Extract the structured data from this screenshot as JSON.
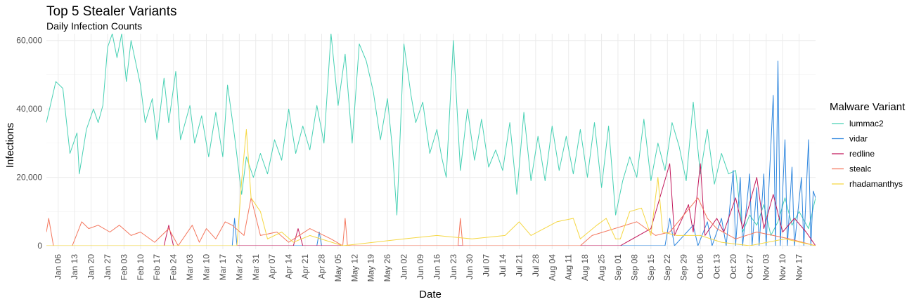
{
  "chart_data": {
    "type": "line",
    "title": "Top 5 Stealer Variants",
    "subtitle": "Daily Infection Counts",
    "xlabel": "Date",
    "ylabel": "Infections",
    "x_start": "2024-01-01",
    "x_end": "2024-11-23",
    "ylim": [
      0,
      62000
    ],
    "y_ticks": [
      0,
      20000,
      40000,
      60000
    ],
    "y_tick_labels": [
      "0",
      "20,000",
      "40,000",
      "60,000"
    ],
    "x_tick_labels": [
      "Jan 06",
      "Jan 13",
      "Jan 20",
      "Jan 27",
      "Feb 03",
      "Feb 10",
      "Feb 17",
      "Feb 24",
      "Mar 03",
      "Mar 10",
      "Mar 17",
      "Mar 24",
      "Mar 31",
      "Apr 07",
      "Apr 14",
      "Apr 21",
      "Apr 28",
      "May 05",
      "May 12",
      "May 19",
      "May 26",
      "Jun 02",
      "Jun 09",
      "Jun 16",
      "Jun 23",
      "Jun 30",
      "Jul 07",
      "Jul 14",
      "Jul 21",
      "Jul 28",
      "Aug 04",
      "Aug 11",
      "Aug 18",
      "Aug 25",
      "Sep 01",
      "Sep 08",
      "Sep 15",
      "Sep 22",
      "Sep 29",
      "Oct 06",
      "Oct 13",
      "Oct 20",
      "Oct 27",
      "Nov 03",
      "Nov 10",
      "Nov 17"
    ],
    "grid": true,
    "legend": {
      "title": "Malware Variant",
      "position": "right"
    },
    "series": [
      {
        "name": "lummac2",
        "color": "#48d1b4",
        "points": [
          [
            "2024-01-01",
            36000
          ],
          [
            "2024-01-05",
            48000
          ],
          [
            "2024-01-08",
            46000
          ],
          [
            "2024-01-11",
            27000
          ],
          [
            "2024-01-14",
            33000
          ],
          [
            "2024-01-15",
            21000
          ],
          [
            "2024-01-18",
            34000
          ],
          [
            "2024-01-21",
            40000
          ],
          [
            "2024-01-23",
            36000
          ],
          [
            "2024-01-25",
            41000
          ],
          [
            "2024-01-27",
            58000
          ],
          [
            "2024-01-29",
            62000
          ],
          [
            "2024-01-31",
            55000
          ],
          [
            "2024-02-02",
            62000
          ],
          [
            "2024-02-04",
            48000
          ],
          [
            "2024-02-06",
            60000
          ],
          [
            "2024-02-10",
            47000
          ],
          [
            "2024-02-12",
            36000
          ],
          [
            "2024-02-15",
            43000
          ],
          [
            "2024-02-17",
            31000
          ],
          [
            "2024-02-20",
            49000
          ],
          [
            "2024-02-22",
            36000
          ],
          [
            "2024-02-25",
            51000
          ],
          [
            "2024-02-27",
            31000
          ],
          [
            "2024-03-02",
            41000
          ],
          [
            "2024-03-04",
            30000
          ],
          [
            "2024-03-07",
            38000
          ],
          [
            "2024-03-10",
            26000
          ],
          [
            "2024-03-13",
            39000
          ],
          [
            "2024-03-16",
            26000
          ],
          [
            "2024-03-18",
            47000
          ],
          [
            "2024-03-21",
            32000
          ],
          [
            "2024-03-24",
            15000
          ],
          [
            "2024-03-26",
            26000
          ],
          [
            "2024-03-29",
            20000
          ],
          [
            "2024-04-01",
            27000
          ],
          [
            "2024-04-04",
            21000
          ],
          [
            "2024-04-07",
            31000
          ],
          [
            "2024-04-10",
            25000
          ],
          [
            "2024-04-13",
            40000
          ],
          [
            "2024-04-16",
            27000
          ],
          [
            "2024-04-19",
            35000
          ],
          [
            "2024-04-22",
            28000
          ],
          [
            "2024-04-25",
            41000
          ],
          [
            "2024-04-28",
            30000
          ],
          [
            "2024-05-01",
            62000
          ],
          [
            "2024-05-04",
            41000
          ],
          [
            "2024-05-07",
            56000
          ],
          [
            "2024-05-10",
            30000
          ],
          [
            "2024-05-13",
            59000
          ],
          [
            "2024-05-16",
            54000
          ],
          [
            "2024-05-19",
            45000
          ],
          [
            "2024-05-22",
            31000
          ],
          [
            "2024-05-25",
            43000
          ],
          [
            "2024-05-27",
            29000
          ],
          [
            "2024-05-29",
            9000
          ],
          [
            "2024-06-01",
            59000
          ],
          [
            "2024-06-04",
            44000
          ],
          [
            "2024-06-06",
            36000
          ],
          [
            "2024-06-09",
            42000
          ],
          [
            "2024-06-12",
            27000
          ],
          [
            "2024-06-15",
            34000
          ],
          [
            "2024-06-17",
            26000
          ],
          [
            "2024-06-19",
            20000
          ],
          [
            "2024-06-22",
            60000
          ],
          [
            "2024-06-25",
            22000
          ],
          [
            "2024-06-28",
            40000
          ],
          [
            "2024-07-01",
            25000
          ],
          [
            "2024-07-04",
            37000
          ],
          [
            "2024-07-07",
            23000
          ],
          [
            "2024-07-10",
            28000
          ],
          [
            "2024-07-13",
            22000
          ],
          [
            "2024-07-16",
            36000
          ],
          [
            "2024-07-19",
            15000
          ],
          [
            "2024-07-22",
            39000
          ],
          [
            "2024-07-25",
            19000
          ],
          [
            "2024-07-28",
            32000
          ],
          [
            "2024-07-31",
            19000
          ],
          [
            "2024-08-03",
            35000
          ],
          [
            "2024-08-06",
            22000
          ],
          [
            "2024-08-09",
            32000
          ],
          [
            "2024-08-12",
            21000
          ],
          [
            "2024-08-15",
            34000
          ],
          [
            "2024-08-18",
            20000
          ],
          [
            "2024-08-21",
            36000
          ],
          [
            "2024-08-24",
            17000
          ],
          [
            "2024-08-27",
            35000
          ],
          [
            "2024-08-30",
            9000
          ],
          [
            "2024-09-02",
            19000
          ],
          [
            "2024-09-05",
            26000
          ],
          [
            "2024-09-08",
            20000
          ],
          [
            "2024-09-11",
            37000
          ],
          [
            "2024-09-14",
            19000
          ],
          [
            "2024-09-17",
            30000
          ],
          [
            "2024-09-20",
            22000
          ],
          [
            "2024-09-23",
            36000
          ],
          [
            "2024-09-26",
            29000
          ],
          [
            "2024-09-29",
            19000
          ],
          [
            "2024-10-02",
            42000
          ],
          [
            "2024-10-05",
            21000
          ],
          [
            "2024-10-08",
            34000
          ],
          [
            "2024-10-11",
            18000
          ],
          [
            "2024-10-14",
            27000
          ],
          [
            "2024-10-17",
            21000
          ],
          [
            "2024-10-20",
            22000
          ],
          [
            "2024-10-23",
            4000
          ],
          [
            "2024-10-26",
            9000
          ],
          [
            "2024-10-29",
            6000
          ],
          [
            "2024-11-01",
            12000
          ],
          [
            "2024-11-04",
            3000
          ],
          [
            "2024-11-07",
            7000
          ],
          [
            "2024-11-10",
            14000
          ],
          [
            "2024-11-13",
            6000
          ],
          [
            "2024-11-16",
            10000
          ],
          [
            "2024-11-20",
            5000
          ],
          [
            "2024-11-23",
            14000
          ]
        ]
      },
      {
        "name": "vidar",
        "color": "#2e86de",
        "points": [
          [
            "2024-01-01",
            0
          ],
          [
            "2024-03-20",
            0
          ],
          [
            "2024-03-21",
            8000
          ],
          [
            "2024-03-22",
            0
          ],
          [
            "2024-04-25",
            0
          ],
          [
            "2024-04-26",
            4000
          ],
          [
            "2024-04-27",
            0
          ],
          [
            "2024-08-20",
            0
          ],
          [
            "2024-09-20",
            0
          ],
          [
            "2024-09-22",
            8000
          ],
          [
            "2024-09-24",
            0
          ],
          [
            "2024-10-02",
            6000
          ],
          [
            "2024-10-04",
            0
          ],
          [
            "2024-10-08",
            7000
          ],
          [
            "2024-10-10",
            0
          ],
          [
            "2024-10-14",
            8000
          ],
          [
            "2024-10-16",
            0
          ],
          [
            "2024-10-19",
            22000
          ],
          [
            "2024-10-20",
            0
          ],
          [
            "2024-10-22",
            20000
          ],
          [
            "2024-10-23",
            0
          ],
          [
            "2024-10-26",
            21000
          ],
          [
            "2024-10-27",
            0
          ],
          [
            "2024-10-29",
            17000
          ],
          [
            "2024-10-30",
            0
          ],
          [
            "2024-11-01",
            21000
          ],
          [
            "2024-11-02",
            0
          ],
          [
            "2024-11-05",
            44000
          ],
          [
            "2024-11-06",
            0
          ],
          [
            "2024-11-07",
            54000
          ],
          [
            "2024-11-08",
            0
          ],
          [
            "2024-11-10",
            31000
          ],
          [
            "2024-11-11",
            0
          ],
          [
            "2024-11-13",
            23000
          ],
          [
            "2024-11-14",
            0
          ],
          [
            "2024-11-17",
            20000
          ],
          [
            "2024-11-18",
            0
          ],
          [
            "2024-11-20",
            31000
          ],
          [
            "2024-11-21",
            0
          ],
          [
            "2024-11-22",
            16000
          ],
          [
            "2024-11-23",
            14000
          ]
        ]
      },
      {
        "name": "redline",
        "color": "#c2185b",
        "points": [
          [
            "2024-01-01",
            0
          ],
          [
            "2024-02-20",
            0
          ],
          [
            "2024-02-22",
            6000
          ],
          [
            "2024-02-24",
            0
          ],
          [
            "2024-04-15",
            0
          ],
          [
            "2024-04-17",
            5000
          ],
          [
            "2024-04-19",
            0
          ],
          [
            "2024-09-01",
            0
          ],
          [
            "2024-09-14",
            5000
          ],
          [
            "2024-09-22",
            24000
          ],
          [
            "2024-09-24",
            3000
          ],
          [
            "2024-09-30",
            12000
          ],
          [
            "2024-10-02",
            4000
          ],
          [
            "2024-10-05",
            24000
          ],
          [
            "2024-10-07",
            3000
          ],
          [
            "2024-10-12",
            8000
          ],
          [
            "2024-10-15",
            4000
          ],
          [
            "2024-10-20",
            14000
          ],
          [
            "2024-10-23",
            5000
          ],
          [
            "2024-10-29",
            20000
          ],
          [
            "2024-11-01",
            5000
          ],
          [
            "2024-11-05",
            15000
          ],
          [
            "2024-11-09",
            4000
          ],
          [
            "2024-11-14",
            8000
          ],
          [
            "2024-11-19",
            4000
          ],
          [
            "2024-11-23",
            0
          ]
        ]
      },
      {
        "name": "stealc",
        "color": "#f4775e",
        "points": [
          [
            "2024-01-01",
            4000
          ],
          [
            "2024-01-02",
            8000
          ],
          [
            "2024-01-04",
            0
          ],
          [
            "2024-01-12",
            0
          ],
          [
            "2024-01-16",
            7000
          ],
          [
            "2024-01-19",
            5000
          ],
          [
            "2024-01-23",
            6000
          ],
          [
            "2024-01-28",
            4000
          ],
          [
            "2024-02-01",
            6000
          ],
          [
            "2024-02-06",
            3000
          ],
          [
            "2024-02-10",
            4000
          ],
          [
            "2024-02-16",
            1000
          ],
          [
            "2024-02-22",
            5000
          ],
          [
            "2024-02-26",
            0
          ],
          [
            "2024-03-03",
            6000
          ],
          [
            "2024-03-06",
            1000
          ],
          [
            "2024-03-09",
            5000
          ],
          [
            "2024-03-13",
            2000
          ],
          [
            "2024-03-17",
            7000
          ],
          [
            "2024-03-20",
            6000
          ],
          [
            "2024-03-25",
            3000
          ],
          [
            "2024-03-28",
            14000
          ],
          [
            "2024-04-01",
            3000
          ],
          [
            "2024-04-08",
            4000
          ],
          [
            "2024-04-13",
            1000
          ],
          [
            "2024-04-22",
            5000
          ],
          [
            "2024-05-01",
            2000
          ],
          [
            "2024-05-06",
            0
          ],
          [
            "2024-05-07",
            8000
          ],
          [
            "2024-05-08",
            0
          ],
          [
            "2024-06-24",
            0
          ],
          [
            "2024-06-25",
            8000
          ],
          [
            "2024-06-26",
            0
          ],
          [
            "2024-08-15",
            0
          ],
          [
            "2024-08-20",
            3000
          ],
          [
            "2024-09-08",
            7000
          ],
          [
            "2024-09-16",
            3000
          ],
          [
            "2024-09-22",
            4000
          ],
          [
            "2024-10-04",
            14000
          ],
          [
            "2024-10-08",
            8000
          ],
          [
            "2024-10-12",
            5000
          ],
          [
            "2024-10-20",
            2000
          ],
          [
            "2024-10-29",
            4000
          ],
          [
            "2024-11-05",
            3000
          ],
          [
            "2024-11-12",
            2000
          ],
          [
            "2024-11-23",
            0
          ]
        ]
      },
      {
        "name": "rhadamanthys",
        "color": "#f5d742",
        "points": [
          [
            "2024-01-01",
            0
          ],
          [
            "2024-03-22",
            0
          ],
          [
            "2024-03-24",
            19000
          ],
          [
            "2024-03-26",
            34000
          ],
          [
            "2024-03-28",
            14000
          ],
          [
            "2024-04-01",
            10000
          ],
          [
            "2024-04-04",
            2000
          ],
          [
            "2024-04-10",
            4000
          ],
          [
            "2024-04-15",
            1000
          ],
          [
            "2024-04-22",
            3000
          ],
          [
            "2024-05-06",
            0
          ],
          [
            "2024-06-01",
            2000
          ],
          [
            "2024-06-15",
            3000
          ],
          [
            "2024-06-30",
            2000
          ],
          [
            "2024-07-14",
            3000
          ],
          [
            "2024-07-20",
            7000
          ],
          [
            "2024-07-25",
            3000
          ],
          [
            "2024-08-05",
            7000
          ],
          [
            "2024-08-12",
            8000
          ],
          [
            "2024-08-15",
            2000
          ],
          [
            "2024-08-22",
            6000
          ],
          [
            "2024-08-26",
            8000
          ],
          [
            "2024-08-30",
            2000
          ],
          [
            "2024-09-01",
            2000
          ],
          [
            "2024-09-05",
            10000
          ],
          [
            "2024-09-10",
            11000
          ],
          [
            "2024-09-14",
            3000
          ],
          [
            "2024-09-17",
            20000
          ],
          [
            "2024-09-19",
            4000
          ],
          [
            "2024-09-25",
            3000
          ],
          [
            "2024-10-05",
            3000
          ],
          [
            "2024-10-14",
            1000
          ],
          [
            "2024-10-26",
            0
          ],
          [
            "2024-11-10",
            2000
          ],
          [
            "2024-11-23",
            0
          ]
        ]
      }
    ]
  }
}
